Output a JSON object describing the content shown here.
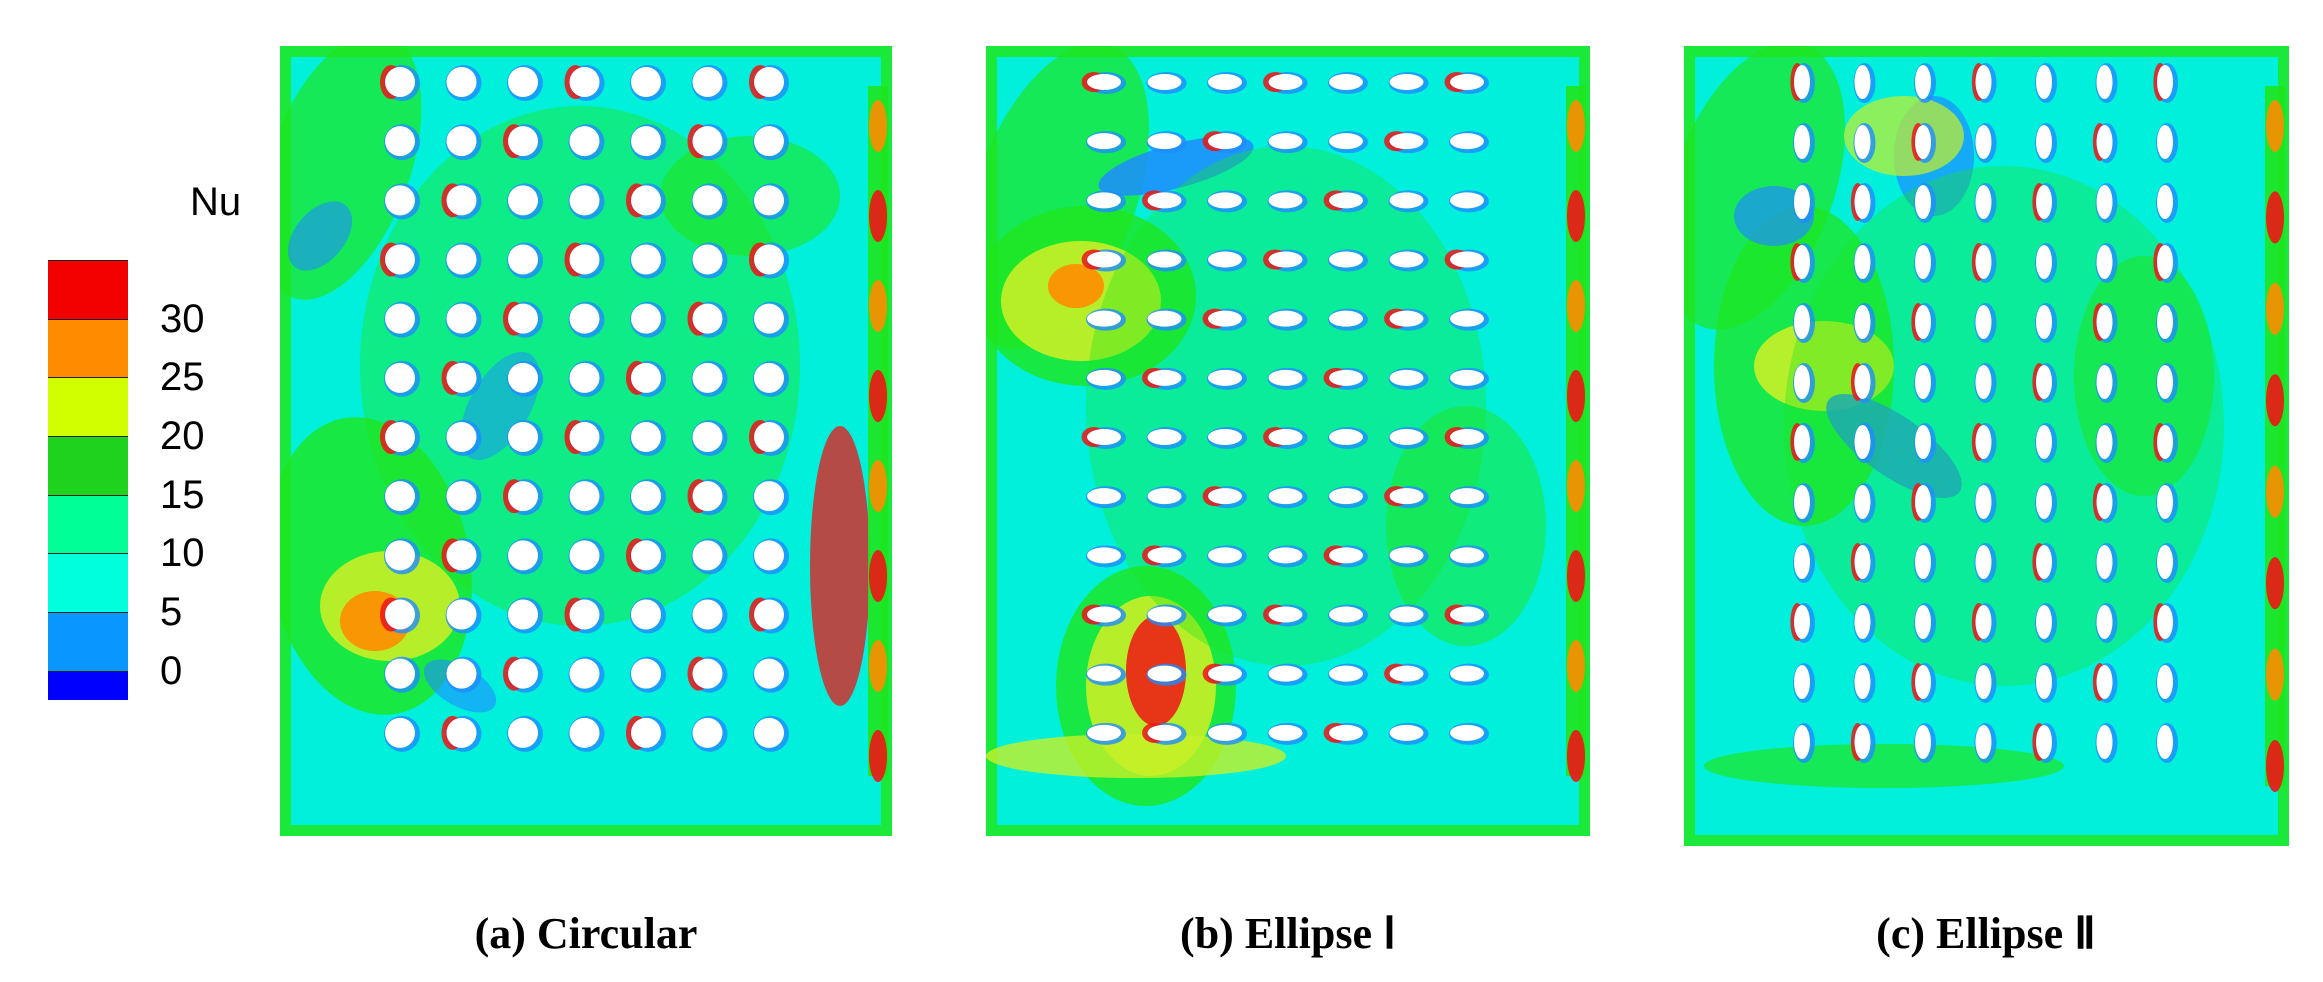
{
  "legend": {
    "title": "Nu",
    "levels": [
      {
        "label": "30",
        "color": "#f20000"
      },
      {
        "label": "25",
        "color": "#ff8c00"
      },
      {
        "label": "20",
        "color": "#d2ff00"
      },
      {
        "label": "15",
        "color": "#1ed21e"
      },
      {
        "label": "10",
        "color": "#00ff96"
      },
      {
        "label": "5",
        "color": "#00ffdc"
      },
      {
        "label": "0",
        "color": "#0a96ff"
      }
    ],
    "bottom_color": "#0000ff"
  },
  "panels": [
    {
      "id": "a",
      "caption": "(a) Circular",
      "shape": "circle"
    },
    {
      "id": "b",
      "caption": "(b) Ellipse Ⅰ",
      "shape": "ellipse-horizontal"
    },
    {
      "id": "c",
      "caption": "(c) Ellipse Ⅱ",
      "shape": "ellipse-vertical"
    }
  ],
  "colors": {
    "background": "#00f0dc",
    "blue": "#1e8cff",
    "green": "#1ee61e",
    "yellow": "#c8f028",
    "orange": "#ff8c00",
    "red": "#f01414",
    "hole": "#ffffff"
  }
}
